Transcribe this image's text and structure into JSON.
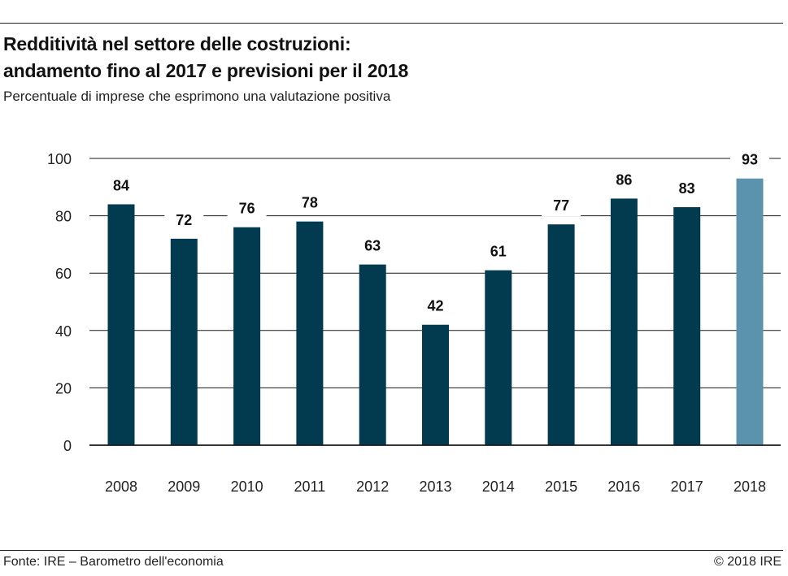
{
  "header": {
    "title_line1": "Redditività nel settore delle costruzioni:",
    "title_line2": "andamento fino al 2017 e previsioni per il 2018",
    "subtitle": "Percentuale di imprese che esprimono una valutazione positiva"
  },
  "footer": {
    "source": "Fonte: IRE – Barometro dell'economia",
    "copyright": "© 2018 IRE"
  },
  "colors": {
    "actual": "#023a4f",
    "forecast": "#5a93ab",
    "grid": "#1a1a1a"
  },
  "chart_data": {
    "type": "bar",
    "categories": [
      "2008",
      "2009",
      "2010",
      "2011",
      "2012",
      "2013",
      "2014",
      "2015",
      "2016",
      "2017",
      "2018"
    ],
    "values": [
      84,
      72,
      76,
      78,
      63,
      42,
      61,
      77,
      86,
      83,
      93
    ],
    "forecast": [
      false,
      false,
      false,
      false,
      false,
      false,
      false,
      false,
      false,
      false,
      true
    ],
    "ylim": [
      0,
      100
    ],
    "yticks": [
      0,
      20,
      40,
      60,
      80,
      100
    ],
    "grid": true,
    "data_labels": true
  }
}
